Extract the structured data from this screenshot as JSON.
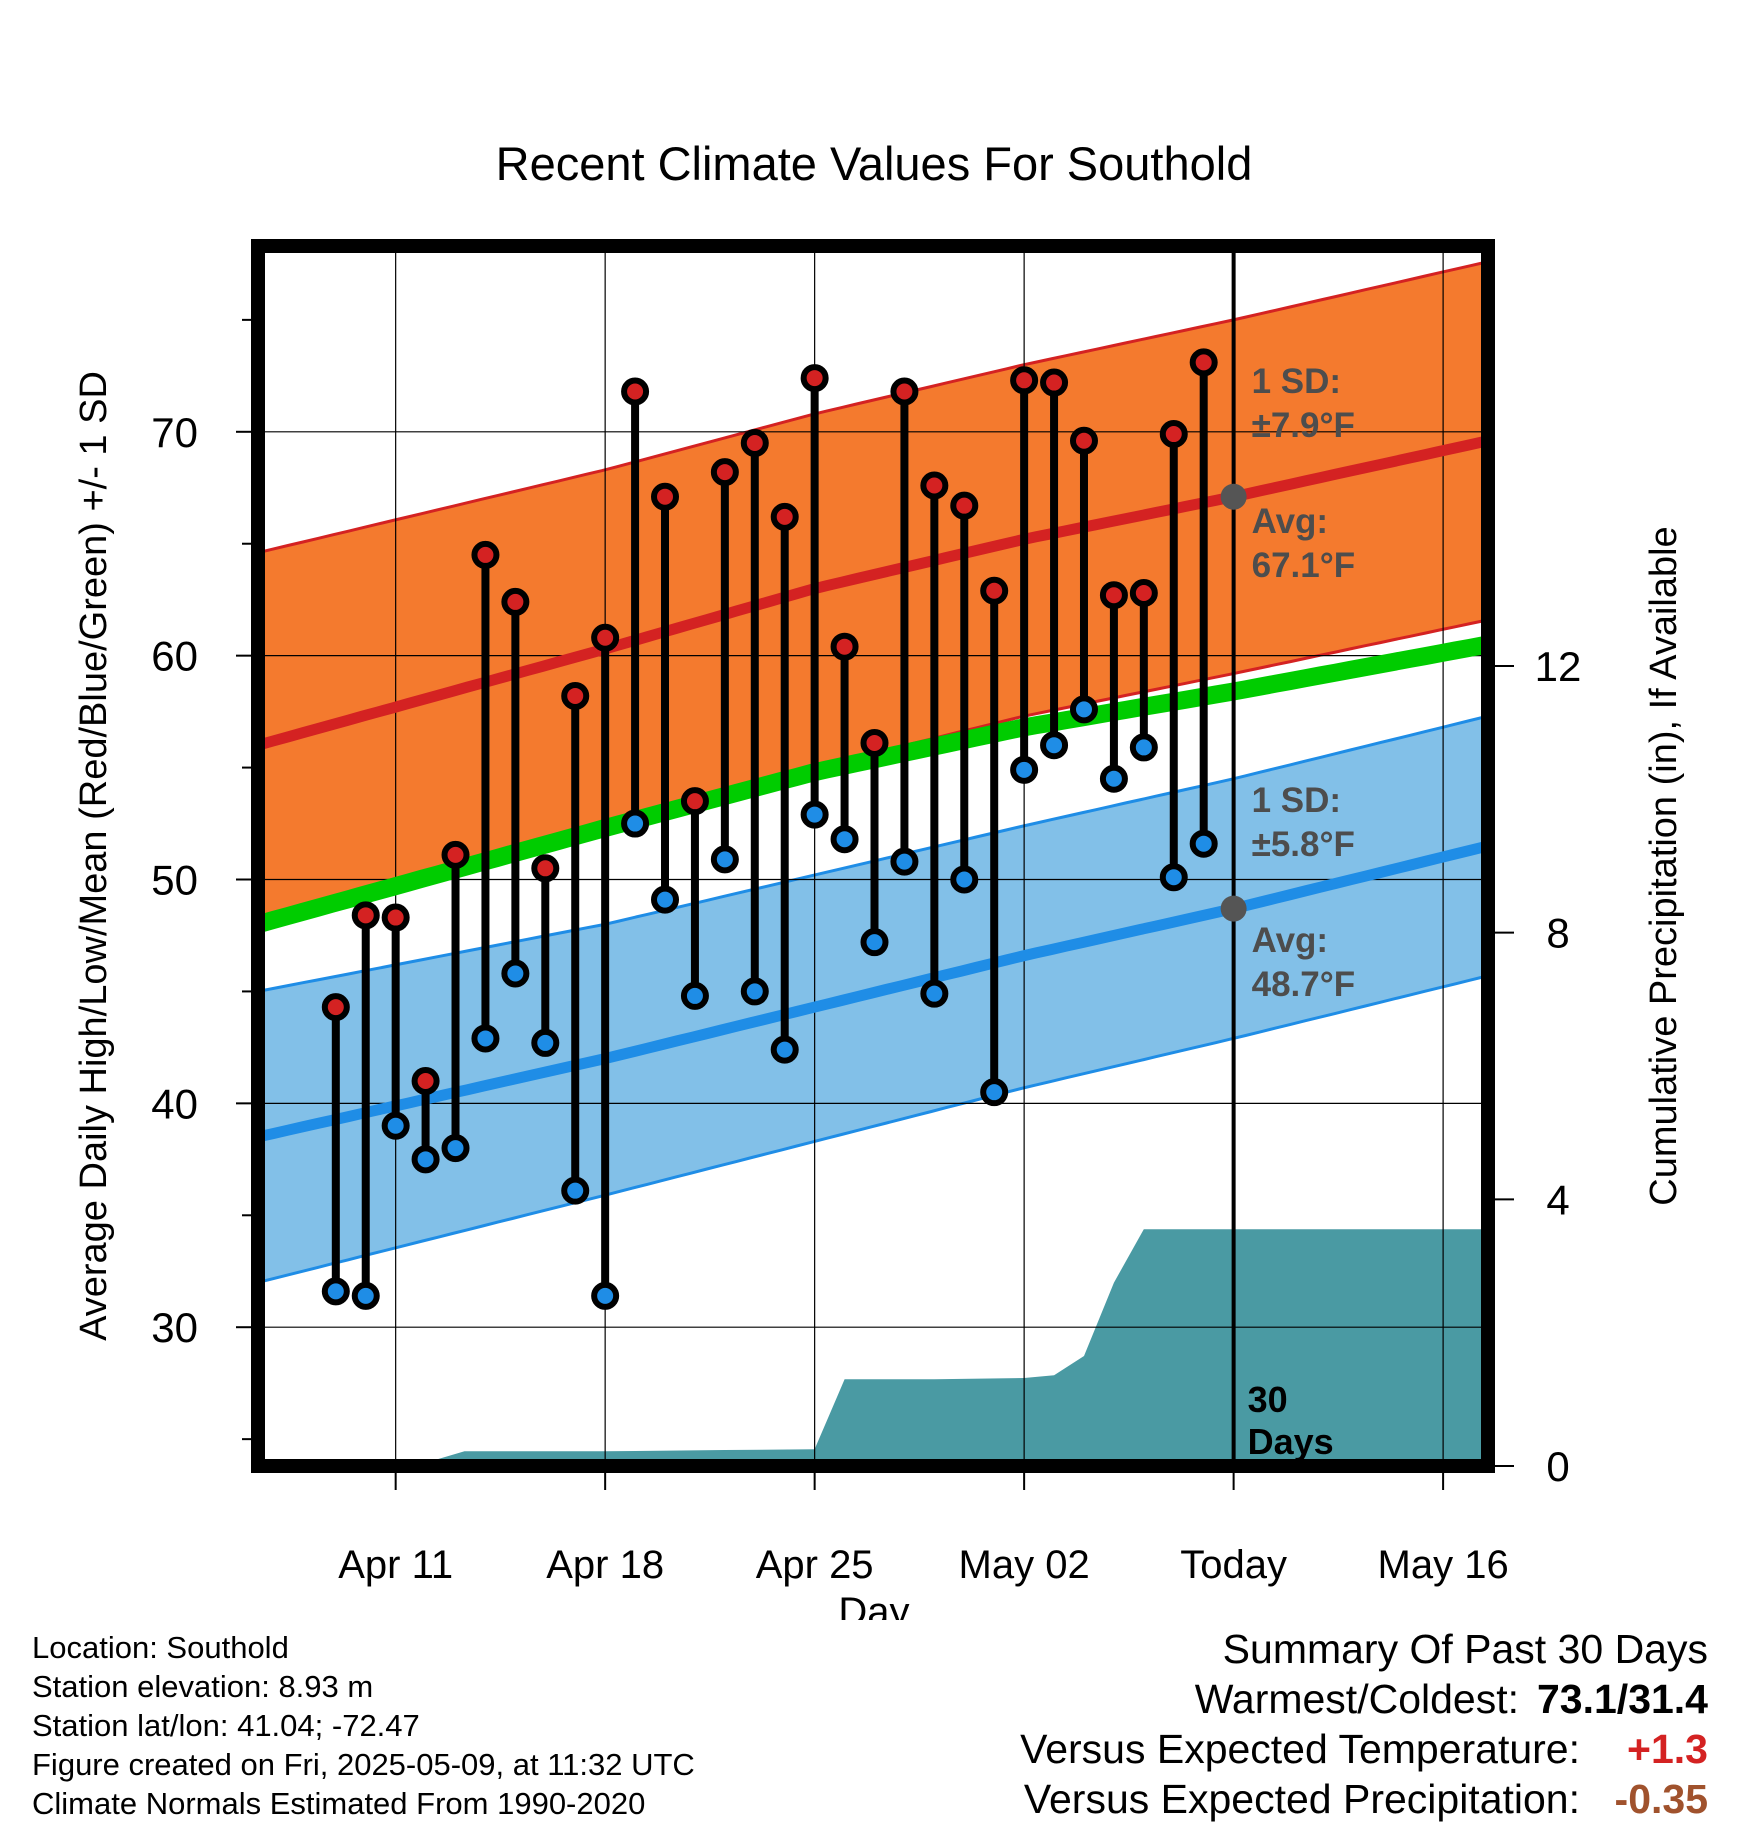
{
  "chart_data": {
    "type": "line",
    "title": "Recent Climate Values For Southold",
    "xlabel": "Day",
    "ylabel": "Average Daily High/Low/Mean (Red/Blue/Green) +/- 1 SD",
    "y2label": "Cumulative Precipitation (in), If Available",
    "x_tick_labels": [
      "Apr 11",
      "Apr 18",
      "Apr 25",
      "May 02",
      "Today",
      "May 16"
    ],
    "x_range_days": [
      -32.6,
      8.5
    ],
    "x_ticks_days": [
      -28,
      -21,
      -14,
      -7,
      0,
      7
    ],
    "y_range": [
      23.8,
      78.3
    ],
    "y_major_ticks": [
      30,
      40,
      50,
      60,
      70
    ],
    "y2_range": [
      0,
      18.3
    ],
    "y2_ticks": [
      0,
      4,
      8,
      12
    ],
    "grid": true,
    "today_marker": {
      "label_line1": "30",
      "label_line2": "Days"
    },
    "series": [
      {
        "name": "High",
        "role": "daily_high",
        "color": "#d42222",
        "values": [
          44.3,
          48.4,
          48.3,
          41.0,
          51.1,
          64.5,
          62.4,
          50.5,
          58.2,
          60.8,
          71.8,
          67.1,
          53.5,
          68.2,
          69.5,
          66.2,
          72.4,
          60.4,
          56.1,
          71.8,
          67.6,
          66.7,
          62.9,
          72.3,
          72.2,
          69.6,
          62.7,
          62.8,
          69.9,
          73.1
        ]
      },
      {
        "name": "Low",
        "role": "daily_low",
        "color": "#1f8de6",
        "values": [
          31.6,
          31.4,
          39.0,
          37.5,
          38.0,
          42.9,
          45.8,
          42.7,
          36.1,
          31.4,
          52.5,
          49.1,
          44.8,
          50.9,
          45.0,
          42.4,
          52.9,
          51.8,
          47.2,
          50.8,
          44.9,
          50.0,
          40.5,
          54.9,
          56.0,
          57.6,
          54.5,
          55.9,
          50.1,
          51.6
        ]
      }
    ],
    "normals": {
      "high_avg": {
        "x": [
          -32.6,
          -21,
          -14,
          -7,
          0,
          8.5
        ],
        "y": [
          56.0,
          60.3,
          63.0,
          65.2,
          67.1,
          69.6
        ],
        "color": "#d42222"
      },
      "high_sd_band": {
        "upper": [
          64.6,
          68.3,
          70.8,
          73.0,
          75.0,
          77.6
        ],
        "lower": [
          47.7,
          52.4,
          55.0,
          57.3,
          59.2,
          61.6
        ],
        "color": "#f47a2e"
      },
      "mean_avg": {
        "x": [
          -32.6,
          -21,
          -14,
          -7,
          0,
          8.5
        ],
        "y": [
          48.0,
          52.3,
          54.8,
          56.8,
          58.4,
          60.5
        ],
        "color": "#00cc00"
      },
      "low_avg": {
        "x": [
          -32.6,
          -21,
          -14,
          -7,
          0,
          8.5
        ],
        "y": [
          38.5,
          42.0,
          44.3,
          46.6,
          48.7,
          51.5
        ],
        "color": "#1f8de6"
      },
      "low_sd_band": {
        "upper": [
          45.0,
          48.0,
          50.2,
          52.4,
          54.5,
          57.3
        ],
        "lower": [
          32.0,
          35.9,
          38.3,
          40.7,
          42.9,
          45.7
        ],
        "color": "#82c0e8"
      }
    },
    "normals_today": {
      "high": 67.1,
      "low": 48.7
    },
    "annotations": {
      "high_sd_line1": "1 SD:",
      "high_sd_line2": "±7.9°F",
      "high_avg_line1": "Avg:",
      "high_avg_line2": "67.1°F",
      "low_sd_line1": "1 SD:",
      "low_sd_line2": "±5.8°F",
      "low_avg_line1": "Avg:",
      "low_avg_line2": "48.7°F"
    },
    "precipitation": {
      "color": "#4a9aa3",
      "x_days": [
        -29.5,
        -27,
        -25.7,
        -24,
        -21,
        -17,
        -14,
        -13,
        -10,
        -7,
        -6,
        -5,
        -4,
        -3,
        8.5
      ],
      "cumulative_in": [
        0.0,
        0.05,
        0.22,
        0.22,
        0.22,
        0.24,
        0.25,
        1.3,
        1.3,
        1.32,
        1.36,
        1.65,
        2.75,
        3.55,
        3.55
      ]
    }
  },
  "footer": {
    "location": "Location: Southold",
    "elevation": "Station elevation: 8.93 m",
    "latlon": "Station lat/lon: 41.04; -72.47",
    "created": "Figure created on Fri, 2025-05-09, at 11:32 UTC",
    "normals": "Climate Normals Estimated From 1990-2020"
  },
  "summary": {
    "title": "Summary Of Past 30 Days",
    "warmest_coldest_label": "Warmest/Coldest:",
    "warmest_coldest_value": "73.1/31.4",
    "temp_label": "Versus Expected Temperature:",
    "temp_value": "+1.3",
    "temp_color": "#d42222",
    "precip_label": "Versus Expected Precipitation:",
    "precip_value": "-0.35",
    "precip_color": "#a0522d"
  }
}
